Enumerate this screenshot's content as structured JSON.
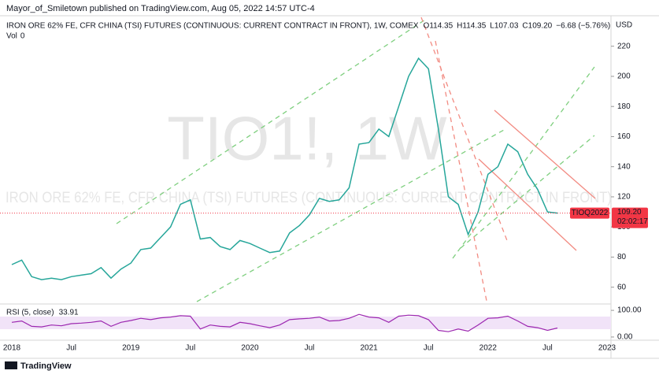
{
  "header": "Mayor_of_Smiletown published on TradingView.com, Aug 05, 2022 14:57 UTC-4",
  "footer": "TradingView",
  "chart_data": {
    "type": "line",
    "symbol": "IRON ORE 62% FE, CFR CHINA (TSI) FUTURES (CONTINUOUS: CURRENT CONTRACT IN FRONT), 1W, COMEX",
    "quote": [
      {
        "key": "O",
        "value": 114.35
      },
      {
        "key": "H",
        "value": 114.35
      },
      {
        "key": "L",
        "value": 107.03
      },
      {
        "key": "C",
        "value": 109.2,
        "label": "109.20"
      }
    ],
    "change": "−6.68 (−5.76%)",
    "volume_label": "Vol",
    "volume": 0,
    "watermark": "TIO1!, 1W",
    "watermark_name": "IRON ORE 62% FE, CFR CHINA (TSI) FUTURES (CONTINUOUS: CURRENT CONTRACT IN FRONT)",
    "currency": "USD",
    "contract": "TIOQ2022",
    "countdown": "02:02:17",
    "color": "#26a69a",
    "last_color": "#f23645",
    "categories": [
      "2018",
      null,
      null,
      null,
      null,
      null,
      "Jul",
      null,
      null,
      null,
      null,
      null,
      "2019",
      null,
      null,
      null,
      null,
      null,
      "Jul",
      null,
      null,
      null,
      null,
      null,
      "2020",
      null,
      null,
      null,
      null,
      null,
      "Jul",
      null,
      null,
      null,
      null,
      null,
      "2021",
      null,
      null,
      null,
      null,
      null,
      "Jul",
      null,
      null,
      null,
      null,
      null,
      "2022",
      null,
      null,
      null,
      null,
      null,
      "Jul",
      null,
      null,
      null,
      null,
      null,
      "2023"
    ],
    "values": [
      75,
      78,
      67,
      65,
      66,
      65,
      67,
      68,
      69,
      73,
      66,
      72,
      76,
      85,
      86,
      93,
      100,
      115,
      118,
      92,
      93,
      87,
      85,
      91,
      89,
      86,
      83,
      84,
      96,
      101,
      108,
      119,
      117,
      118,
      126,
      155,
      156,
      165,
      160,
      180,
      200,
      212,
      205,
      165,
      120,
      115,
      95,
      110,
      135,
      140,
      155,
      150,
      135,
      125,
      110,
      109.2,
      null,
      null,
      null,
      null,
      null
    ],
    "ylim": [
      52,
      235
    ],
    "yticks": [
      60,
      80,
      100,
      120,
      140,
      160,
      180,
      200,
      220
    ],
    "rsi": {
      "title": "RSI (5, close)",
      "value": 33.91,
      "color": "#9c27b0",
      "values": [
        55,
        60,
        40,
        38,
        45,
        42,
        50,
        52,
        55,
        60,
        40,
        55,
        62,
        70,
        65,
        72,
        75,
        80,
        78,
        30,
        45,
        40,
        38,
        55,
        50,
        42,
        35,
        45,
        65,
        68,
        70,
        75,
        60,
        62,
        70,
        85,
        75,
        72,
        55,
        78,
        82,
        80,
        65,
        25,
        20,
        30,
        22,
        45,
        70,
        72,
        78,
        60,
        40,
        35,
        25,
        33.91,
        null,
        null,
        null,
        null,
        null
      ],
      "ylim": [
        -12,
        118
      ],
      "yticks": [
        {
          "value": 0,
          "label": "0.00"
        },
        {
          "value": 100,
          "label": "100.00"
        }
      ]
    }
  }
}
